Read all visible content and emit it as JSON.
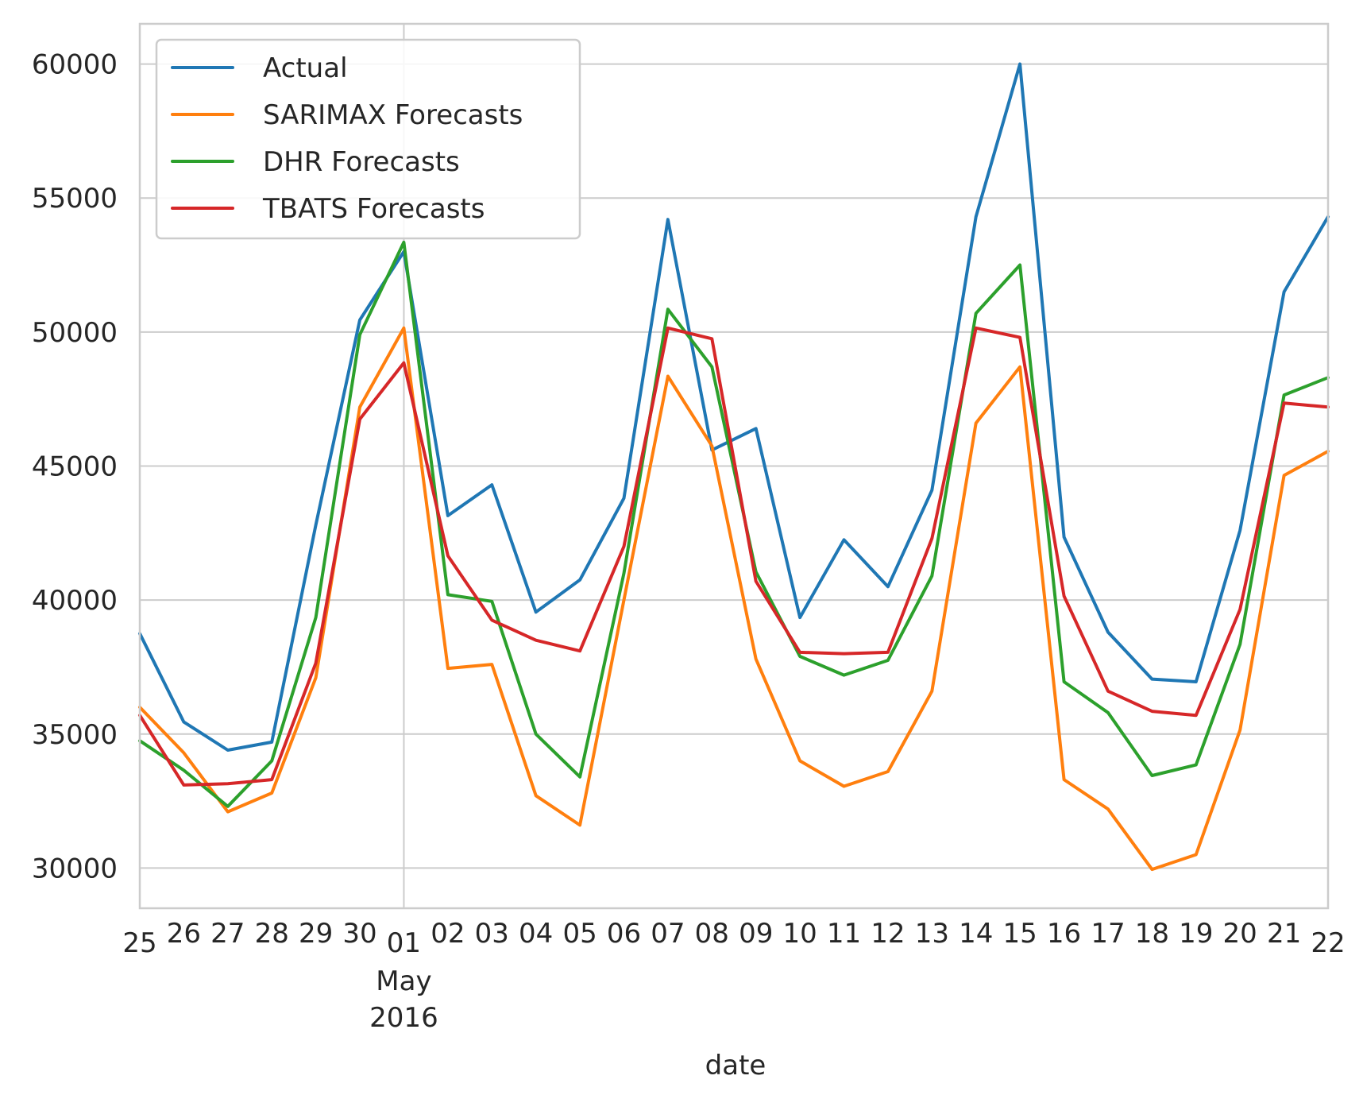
{
  "chart_data": {
    "type": "line",
    "xlabel": "date",
    "ylabel": "",
    "x_tick_labels": [
      "25",
      "26",
      "27",
      "28",
      "29",
      "30",
      "01",
      "02",
      "03",
      "04",
      "05",
      "06",
      "07",
      "08",
      "09",
      "10",
      "11",
      "12",
      "13",
      "14",
      "15",
      "16",
      "17",
      "18",
      "19",
      "20",
      "21",
      "22"
    ],
    "x_major_tick": {
      "day": "01",
      "month": "May",
      "year": "2016"
    },
    "x_range": [
      "2016-04-25",
      "2016-05-22"
    ],
    "ylim": [
      28500,
      61500
    ],
    "y_ticks": [
      30000,
      35000,
      40000,
      45000,
      50000,
      55000,
      60000
    ],
    "grid": true,
    "legend_position": "top-left",
    "series": [
      {
        "name": "Actual",
        "color": "#1f77b4",
        "values": [
          38750,
          35450,
          34400,
          34700,
          42800,
          50450,
          53000,
          43150,
          44300,
          39550,
          40750,
          43800,
          54200,
          45600,
          46400,
          39350,
          42250,
          40500,
          44100,
          54300,
          60000,
          42350,
          38800,
          37050,
          36950,
          42600,
          51500,
          54300
        ]
      },
      {
        "name": "SARIMAX Forecasts",
        "color": "#ff7f0e",
        "values": [
          36000,
          34300,
          32100,
          32800,
          37100,
          47200,
          50150,
          37450,
          37600,
          32700,
          31600,
          40000,
          48350,
          45750,
          37800,
          34000,
          33050,
          33600,
          36600,
          46600,
          48700,
          33300,
          32200,
          29950,
          30500,
          35150,
          44650,
          45550
        ]
      },
      {
        "name": "DHR Forecasts",
        "color": "#2ca02c",
        "values": [
          34750,
          33650,
          32300,
          34000,
          39350,
          49900,
          53350,
          40200,
          39950,
          35000,
          33400,
          41000,
          50850,
          48700,
          41050,
          37900,
          37200,
          37750,
          40900,
          50700,
          52500,
          36950,
          35800,
          33450,
          33850,
          38350,
          47650,
          48300
        ]
      },
      {
        "name": "TBATS Forecasts",
        "color": "#d62728",
        "values": [
          35700,
          33100,
          33150,
          33300,
          37650,
          46750,
          48850,
          41650,
          39250,
          38500,
          38100,
          42000,
          50150,
          49750,
          40700,
          38050,
          38000,
          38050,
          42300,
          50150,
          49800,
          40150,
          36600,
          35850,
          35700,
          39650,
          47350,
          47200
        ]
      }
    ]
  }
}
